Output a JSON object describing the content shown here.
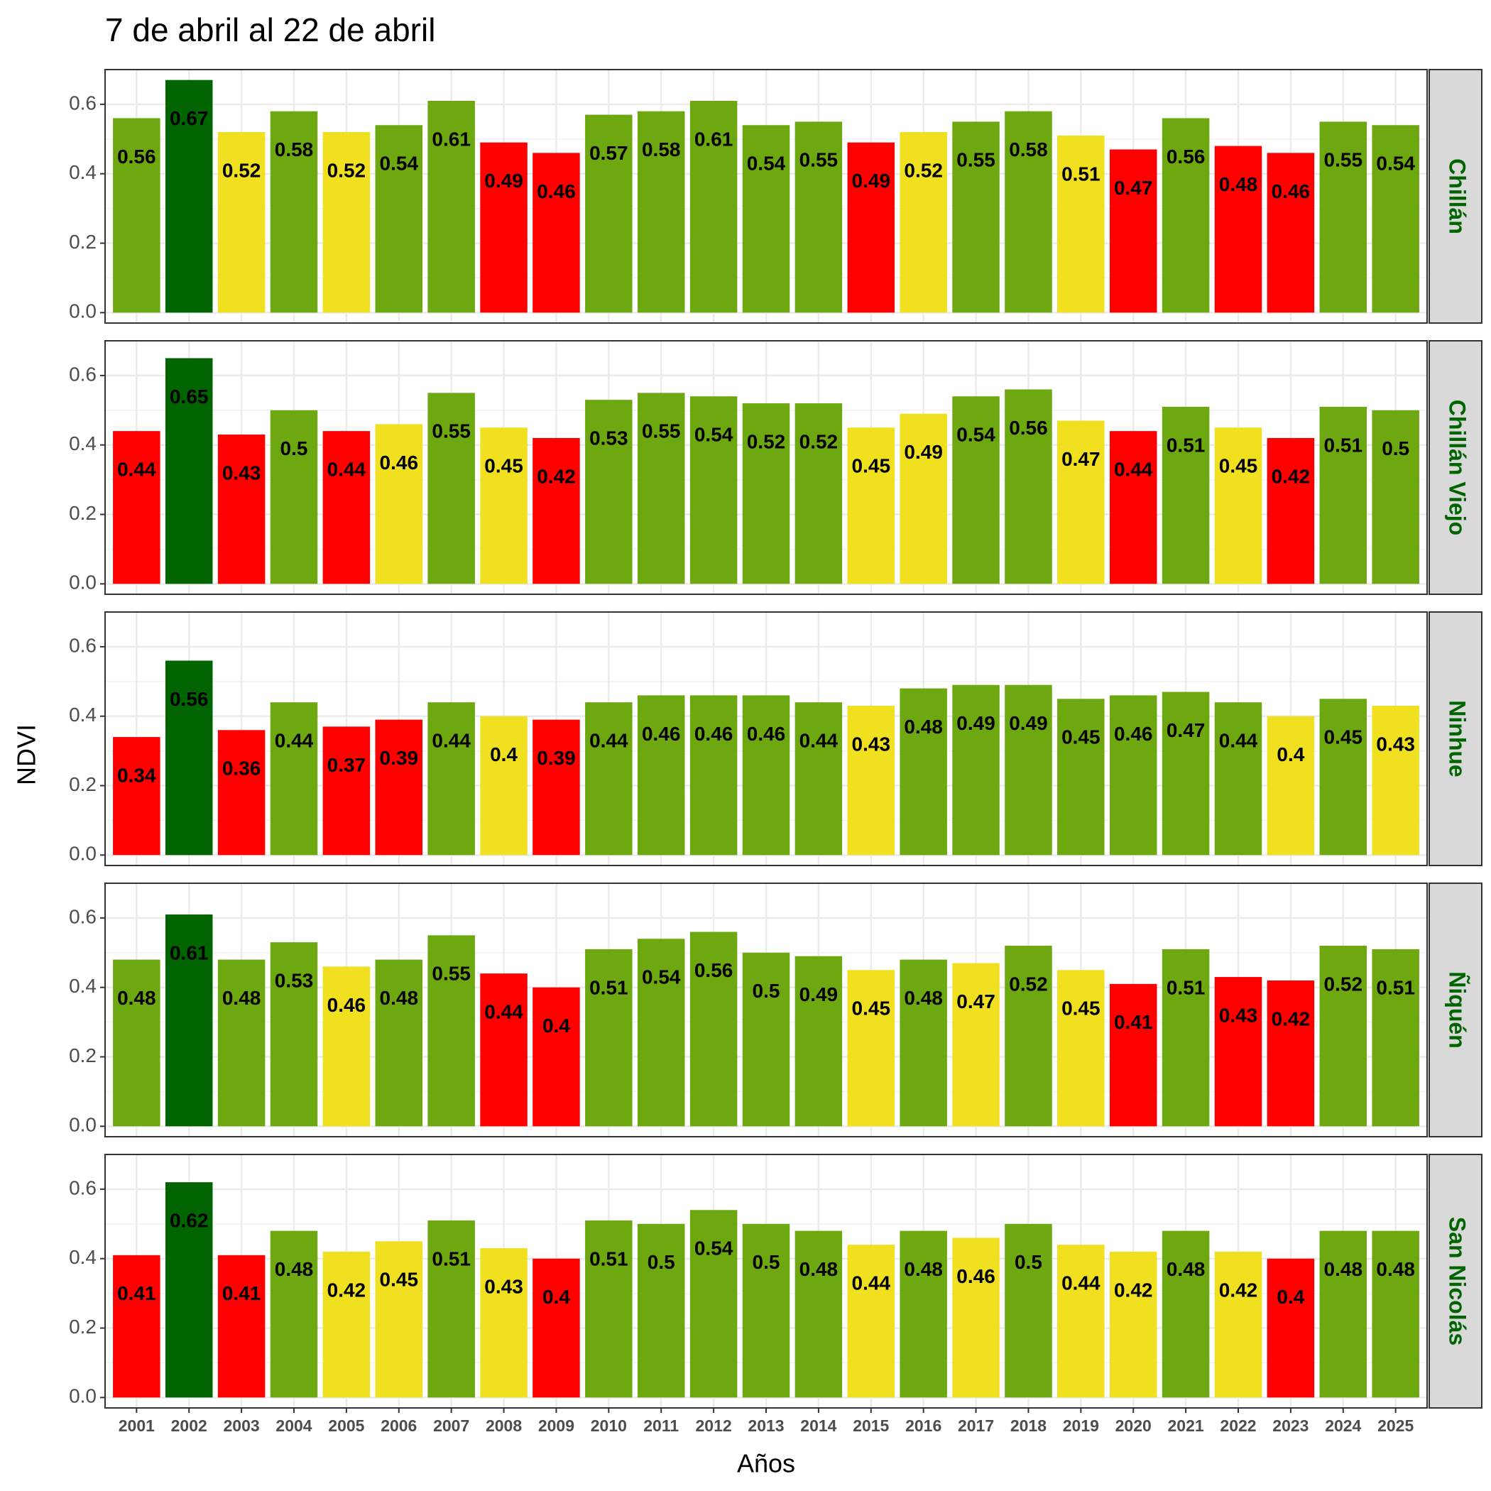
{
  "chart_data": {
    "type": "bar",
    "faceted": true,
    "title": "7 de abril al 22 de abril",
    "xlabel": "Años",
    "ylabel": "NDVI",
    "categories": [
      "2001",
      "2002",
      "2003",
      "2004",
      "2005",
      "2006",
      "2007",
      "2008",
      "2009",
      "2010",
      "2011",
      "2012",
      "2013",
      "2014",
      "2015",
      "2016",
      "2017",
      "2018",
      "2019",
      "2020",
      "2021",
      "2022",
      "2023",
      "2024",
      "2025"
    ],
    "ylim": [
      -0.03,
      0.7
    ],
    "yticks": [
      {
        "value": 0,
        "label": "0.0"
      },
      0.2,
      0.4,
      0.6
    ],
    "grid": true,
    "series": [
      {
        "name": "Chillán",
        "values": [
          0.56,
          0.67,
          0.52,
          0.58,
          0.52,
          0.54,
          0.61,
          0.49,
          0.46,
          0.57,
          0.58,
          0.61,
          0.54,
          0.55,
          0.49,
          0.52,
          0.55,
          0.58,
          0.51,
          0.47,
          0.56,
          0.48,
          0.46,
          0.55,
          0.54
        ],
        "colors": [
          "#6ea811",
          "#006400",
          "#f0e020",
          "#6ea811",
          "#f0e020",
          "#6ea811",
          "#6ea811",
          "#ff0000",
          "#ff0000",
          "#6ea811",
          "#6ea811",
          "#6ea811",
          "#6ea811",
          "#6ea811",
          "#ff0000",
          "#f0e020",
          "#6ea811",
          "#6ea811",
          "#f0e020",
          "#ff0000",
          "#6ea811",
          "#ff0000",
          "#ff0000",
          "#6ea811",
          "#6ea811"
        ]
      },
      {
        "name": "Chillán Viejo",
        "values": [
          0.44,
          0.65,
          0.43,
          0.5,
          0.44,
          0.46,
          0.55,
          0.45,
          0.42,
          0.53,
          0.55,
          0.54,
          0.52,
          0.52,
          0.45,
          0.49,
          0.54,
          0.56,
          0.47,
          0.44,
          0.51,
          0.45,
          0.42,
          0.51,
          0.5
        ],
        "colors": [
          "#ff0000",
          "#006400",
          "#ff0000",
          "#6ea811",
          "#ff0000",
          "#f0e020",
          "#6ea811",
          "#f0e020",
          "#ff0000",
          "#6ea811",
          "#6ea811",
          "#6ea811",
          "#6ea811",
          "#6ea811",
          "#f0e020",
          "#f0e020",
          "#6ea811",
          "#6ea811",
          "#f0e020",
          "#ff0000",
          "#6ea811",
          "#f0e020",
          "#ff0000",
          "#6ea811",
          "#6ea811"
        ]
      },
      {
        "name": "Ninhue",
        "values": [
          0.34,
          0.56,
          0.36,
          0.44,
          0.37,
          0.39,
          0.44,
          0.4,
          0.39,
          0.44,
          0.46,
          0.46,
          0.46,
          0.44,
          0.43,
          0.48,
          0.49,
          0.49,
          0.45,
          0.46,
          0.47,
          0.44,
          0.4,
          0.45,
          0.43
        ],
        "colors": [
          "#ff0000",
          "#006400",
          "#ff0000",
          "#6ea811",
          "#ff0000",
          "#ff0000",
          "#6ea811",
          "#f0e020",
          "#ff0000",
          "#6ea811",
          "#6ea811",
          "#6ea811",
          "#6ea811",
          "#6ea811",
          "#f0e020",
          "#6ea811",
          "#6ea811",
          "#6ea811",
          "#6ea811",
          "#6ea811",
          "#6ea811",
          "#6ea811",
          "#f0e020",
          "#6ea811",
          "#f0e020"
        ]
      },
      {
        "name": "Ñiquén",
        "values": [
          0.48,
          0.61,
          0.48,
          0.53,
          0.46,
          0.48,
          0.55,
          0.44,
          0.4,
          0.51,
          0.54,
          0.56,
          0.5,
          0.49,
          0.45,
          0.48,
          0.47,
          0.52,
          0.45,
          0.41,
          0.51,
          0.43,
          0.42,
          0.52,
          0.51
        ],
        "colors": [
          "#6ea811",
          "#006400",
          "#6ea811",
          "#6ea811",
          "#f0e020",
          "#6ea811",
          "#6ea811",
          "#ff0000",
          "#ff0000",
          "#6ea811",
          "#6ea811",
          "#6ea811",
          "#6ea811",
          "#6ea811",
          "#f0e020",
          "#6ea811",
          "#f0e020",
          "#6ea811",
          "#f0e020",
          "#ff0000",
          "#6ea811",
          "#ff0000",
          "#ff0000",
          "#6ea811",
          "#6ea811"
        ]
      },
      {
        "name": "San Nicolás",
        "values": [
          0.41,
          0.62,
          0.41,
          0.48,
          0.42,
          0.45,
          0.51,
          0.43,
          0.4,
          0.51,
          0.5,
          0.54,
          0.5,
          0.48,
          0.44,
          0.48,
          0.46,
          0.5,
          0.44,
          0.42,
          0.48,
          0.42,
          0.4,
          0.48,
          0.48
        ],
        "colors": [
          "#ff0000",
          "#006400",
          "#ff0000",
          "#6ea811",
          "#f0e020",
          "#f0e020",
          "#6ea811",
          "#f0e020",
          "#ff0000",
          "#6ea811",
          "#6ea811",
          "#6ea811",
          "#6ea811",
          "#6ea811",
          "#f0e020",
          "#6ea811",
          "#f0e020",
          "#6ea811",
          "#f0e020",
          "#f0e020",
          "#6ea811",
          "#f0e020",
          "#ff0000",
          "#6ea811",
          "#6ea811"
        ]
      }
    ]
  }
}
